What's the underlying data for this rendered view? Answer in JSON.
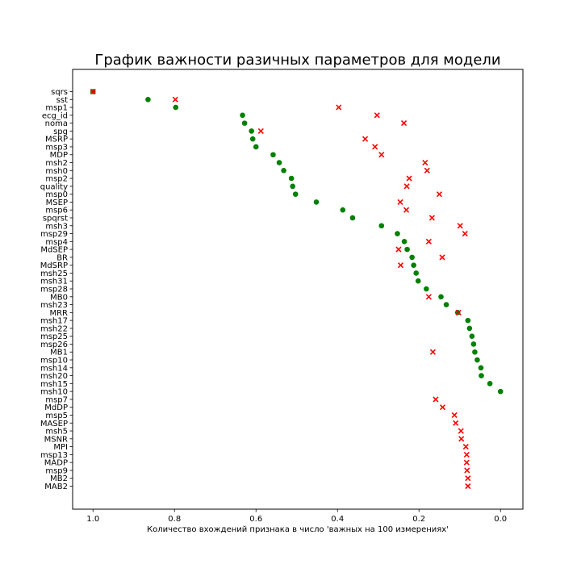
{
  "chart_data": {
    "type": "scatter",
    "title": "График важности разичных параметров для модели",
    "xlabel": "Количество вхождений признака в число 'важных на 100 измерениях'",
    "ylabel": "",
    "xlim": [
      1.05,
      -0.055
    ],
    "x_ticks": [
      1.0,
      0.8,
      0.6,
      0.4,
      0.2,
      0.0
    ],
    "x_tick_labels": [
      "1.0",
      "0.8",
      "0.6",
      "0.4",
      "0.2",
      "0.0"
    ],
    "grid": false,
    "categories": [
      "sqrs",
      "sst",
      "msp1",
      "ecg_id",
      "noma",
      "spg",
      "MSRP",
      "msp3",
      "MDP",
      "msh2",
      "msh0",
      "msp2",
      "quality",
      "msp0",
      "MSEP",
      "msp6",
      "spqrst",
      "msh3",
      "msp29",
      "msp4",
      "MdSEP",
      "BR",
      "MdSRP",
      "msh25",
      "msh31",
      "msp28",
      "MB0",
      "msh23",
      "MRR",
      "msh17",
      "msh22",
      "msp25",
      "msp26",
      "MB1",
      "msp10",
      "msh14",
      "msh20",
      "msh15",
      "msh10",
      "msp7",
      "MdDP",
      "msp5",
      "MASEP",
      "msh5",
      "MSNR",
      "MPI",
      "msp13",
      "MADP",
      "msp9",
      "MB2",
      "MAB2"
    ],
    "series": [
      {
        "marker": "circle",
        "color": "#008000",
        "values": [
          1.0,
          0.865,
          0.797,
          0.633,
          0.628,
          0.611,
          0.608,
          0.6,
          0.558,
          0.543,
          0.532,
          0.513,
          0.51,
          0.503,
          0.452,
          0.387,
          0.363,
          0.292,
          0.253,
          0.236,
          0.229,
          0.217,
          0.213,
          0.207,
          0.202,
          0.182,
          0.146,
          0.133,
          0.105,
          0.08,
          0.076,
          0.07,
          0.066,
          0.063,
          0.057,
          0.048,
          0.047,
          0.026,
          0.0,
          null,
          null,
          null,
          null,
          null,
          null,
          null,
          null,
          null,
          null,
          null,
          null
        ]
      },
      {
        "marker": "x",
        "color": "#ff0000",
        "values": [
          1.0,
          0.798,
          0.397,
          0.303,
          0.237,
          0.588,
          0.332,
          0.308,
          0.292,
          0.185,
          0.18,
          0.224,
          0.23,
          0.15,
          0.246,
          0.231,
          0.168,
          0.099,
          0.087,
          0.176,
          0.25,
          0.143,
          0.245,
          null,
          null,
          null,
          0.176,
          null,
          0.103,
          null,
          null,
          null,
          null,
          0.166,
          null,
          null,
          null,
          null,
          null,
          0.159,
          0.142,
          0.113,
          0.11,
          0.097,
          0.096,
          0.085,
          0.083,
          0.083,
          0.082,
          0.08,
          0.08
        ]
      }
    ]
  }
}
